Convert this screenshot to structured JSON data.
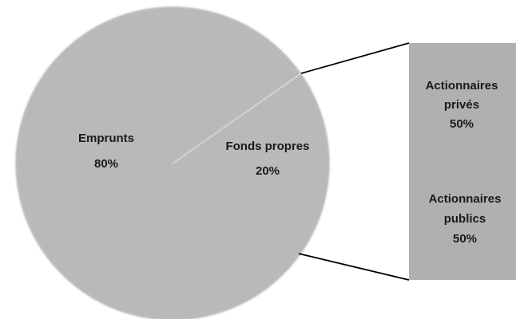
{
  "chart_data": {
    "type": "pie",
    "subtype": "bar-of-pie",
    "title": "",
    "slices": [
      {
        "label": "Emprunts",
        "value": 80,
        "value_label": "80%"
      },
      {
        "label": "Fonds propres",
        "value": 20,
        "value_label": "20%"
      }
    ],
    "breakdown_of": "Fonds propres",
    "breakdown": [
      {
        "label_lines": [
          "Actionnaires",
          "privés"
        ],
        "value": 50,
        "value_label": "50%"
      },
      {
        "label_lines": [
          "Actionnaires",
          "publics"
        ],
        "value": 50,
        "value_label": "50%"
      }
    ],
    "colors": {
      "pie": "#b9b9b9",
      "bar": "#b0b0b0",
      "divider": "#d2d2d2",
      "connector": "#000000"
    }
  }
}
